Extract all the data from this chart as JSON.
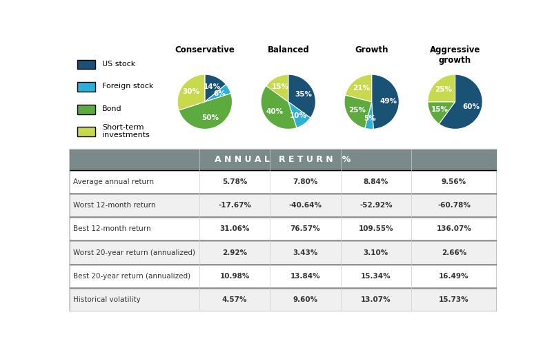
{
  "pie_columns": [
    "Conservative",
    "Balanced",
    "Growth",
    "Aggressive\ngrowth"
  ],
  "pie_colors": [
    "#1a5276",
    "#2eafd4",
    "#5dab3f",
    "#c8d94e"
  ],
  "pie_labels": [
    "US stock",
    "Foreign stock",
    "Bond",
    "Short-term\ninvestments"
  ],
  "pie_data": [
    [
      14,
      6,
      50,
      30
    ],
    [
      35,
      10,
      40,
      15
    ],
    [
      49,
      5,
      25,
      21
    ],
    [
      60,
      0,
      15,
      25
    ]
  ],
  "pie_label_pcts": [
    [
      "14%",
      "6%",
      "50%",
      "30%"
    ],
    [
      "35%",
      "10%",
      "40%",
      "15%"
    ],
    [
      "49%",
      "5%",
      "25%",
      "21%"
    ],
    [
      "60%",
      "",
      "15%",
      "25%"
    ]
  ],
  "header_bg": "#7a8a8a",
  "header_text": "A N N U A L   R E T U R N   %",
  "row_labels": [
    "Average annual return",
    "Worst 12-month return",
    "Best 12-month return",
    "Worst 20-year return (annualized)",
    "Best 20-year return (annualized)",
    "Historical volatility"
  ],
  "table_data": [
    [
      "5.78%",
      "7.80%",
      "8.84%",
      "9.56%"
    ],
    [
      "-17.67%",
      "-40.64%",
      "-52.92%",
      "-60.78%"
    ],
    [
      "31.06%",
      "76.57%",
      "109.55%",
      "136.07%"
    ],
    [
      "2.92%",
      "3.43%",
      "3.10%",
      "2.66%"
    ],
    [
      "10.98%",
      "13.84%",
      "15.34%",
      "16.49%"
    ],
    [
      "4.57%",
      "9.60%",
      "13.07%",
      "15.73%"
    ]
  ],
  "us_stock_color": "#1a5276",
  "foreign_stock_color": "#2eafd4",
  "bond_color": "#5dab3f",
  "short_term_color": "#c8d94e",
  "alt_row_color": "#f0f0f0",
  "white_color": "#ffffff",
  "border_color": "#cccccc",
  "text_color": "#333333"
}
